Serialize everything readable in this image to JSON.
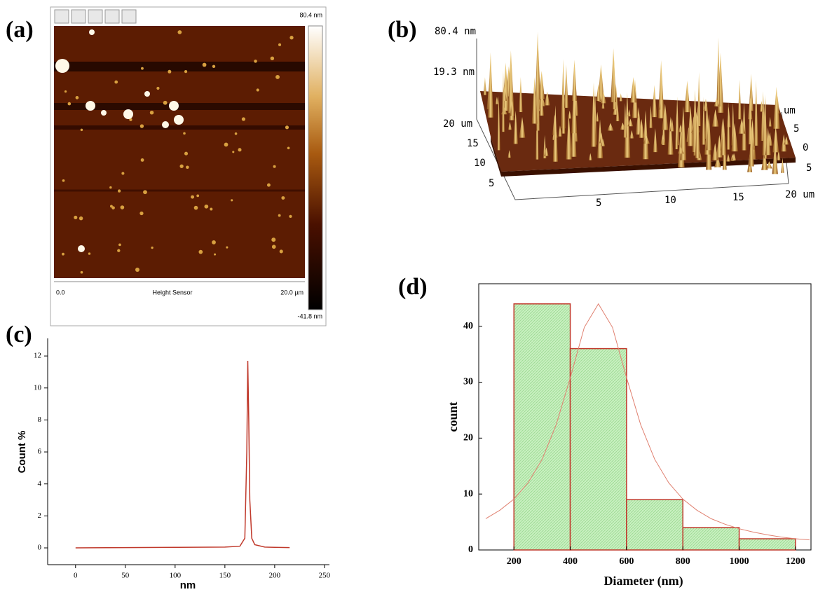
{
  "chart_data": [
    {
      "type": "afm-image",
      "panel_label": "(a)",
      "colorbar_max": "80.4 nm",
      "colorbar_min": "-41.8 nm",
      "scale_start": "0.0",
      "scale_label": "Height Sensor",
      "scale_end": "20.0 µm"
    },
    {
      "type": "surface-3d",
      "panel_label": "(b)",
      "z_labels": [
        "80.4 nm",
        "19.3 nm"
      ],
      "y_labels": [
        "20 um",
        "15",
        "10",
        "5"
      ],
      "x_labels": [
        "5",
        "10",
        "15",
        "20 um"
      ],
      "side_labels": [
        "um",
        "5",
        "0",
        "5"
      ]
    },
    {
      "type": "line",
      "panel_label": "(c)",
      "x": [
        0,
        50,
        100,
        150,
        165,
        170,
        172,
        173,
        174,
        175,
        177,
        180,
        190,
        200,
        215
      ],
      "values": [
        0,
        0.02,
        0.03,
        0.05,
        0.1,
        0.6,
        6,
        11.7,
        8,
        3,
        0.6,
        0.2,
        0.05,
        0.03,
        0.02
      ],
      "color": "#c0392b",
      "xlim": [
        -28,
        255
      ],
      "xticks": [
        0,
        50,
        100,
        150,
        200,
        250
      ],
      "ylim": [
        -1.05,
        13.1
      ],
      "yticks": [
        0,
        2,
        4,
        6,
        8,
        10,
        12
      ],
      "xlabel": "nm",
      "ylabel": "Count %"
    },
    {
      "type": "histogram",
      "panel_label": "(d)",
      "bins": [
        200,
        400,
        600,
        800,
        1000,
        1200
      ],
      "values": [
        44,
        36,
        9,
        4,
        2
      ],
      "color": "#c8f0c0",
      "edge_color": "#c0392b",
      "fit": {
        "x": [
          100,
          150,
          200,
          250,
          300,
          350,
          400,
          450,
          500,
          550,
          600,
          650,
          700,
          750,
          800,
          850,
          900,
          950,
          1000,
          1050,
          1100,
          1150,
          1200,
          1250
        ],
        "values": [
          5.6,
          7.1,
          9.1,
          12.0,
          16.2,
          22.4,
          30.8,
          39.8,
          44,
          39.8,
          30.8,
          22.4,
          16.2,
          12.0,
          9.1,
          7.1,
          5.6,
          4.6,
          3.8,
          3.2,
          2.7,
          2.3,
          2.0,
          1.8
        ],
        "color": "#e08070"
      },
      "xlim": [
        75,
        1255
      ],
      "xticks": [
        200,
        400,
        600,
        800,
        1000,
        1200
      ],
      "ylim": [
        0,
        47.6
      ],
      "yticks": [
        0,
        10,
        20,
        30,
        40
      ],
      "xlabel": "Diameter (nm)",
      "ylabel": "count"
    }
  ]
}
